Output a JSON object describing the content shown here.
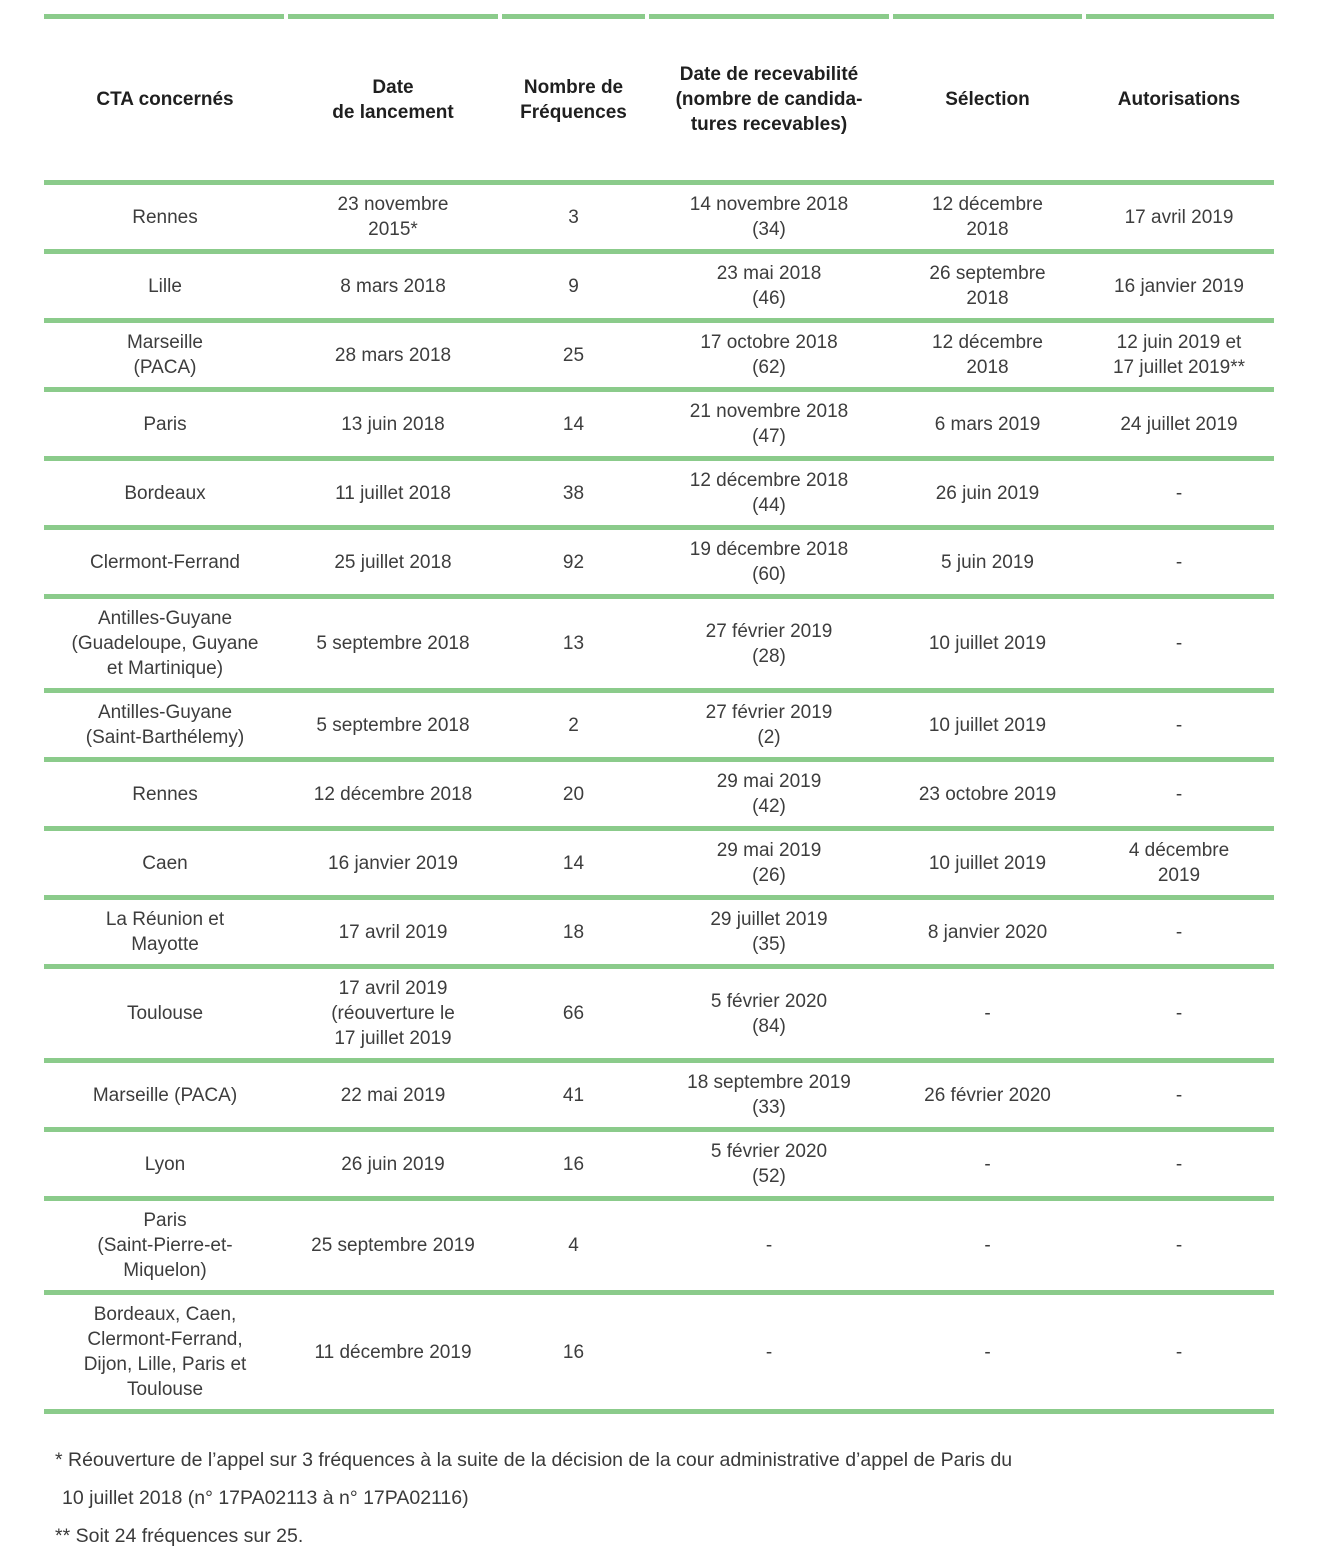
{
  "table": {
    "columns": [
      {
        "key": "cta",
        "label": "CTA concernés"
      },
      {
        "key": "lancement",
        "label": "Date\nde lancement"
      },
      {
        "key": "frequences",
        "label": "Nombre de\nFréquences"
      },
      {
        "key": "recevabilite",
        "label": "Date de recevabilité\n(nombre de candida-\ntures recevables)"
      },
      {
        "key": "selection",
        "label": "Sélection"
      },
      {
        "key": "autorisations",
        "label": "Autorisations"
      }
    ],
    "rows": [
      {
        "cta": "Rennes",
        "lancement": "23 novembre\n2015*",
        "frequences": "3",
        "recevabilite": "14 novembre 2018\n(34)",
        "selection": "12 décembre\n2018",
        "autorisations": "17 avril 2019"
      },
      {
        "cta": "Lille",
        "lancement": "8 mars 2018",
        "frequences": "9",
        "recevabilite": "23 mai 2018\n(46)",
        "selection": "26 septembre\n2018",
        "autorisations": "16 janvier 2019"
      },
      {
        "cta": "Marseille\n(PACA)",
        "lancement": "28 mars 2018",
        "frequences": "25",
        "recevabilite": "17 octobre 2018\n(62)",
        "selection": "12 décembre\n2018",
        "autorisations": "12 juin 2019 et\n17 juillet 2019**"
      },
      {
        "cta": "Paris",
        "lancement": "13 juin 2018",
        "frequences": "14",
        "recevabilite": "21 novembre 2018\n(47)",
        "selection": "6 mars 2019",
        "autorisations": "24 juillet 2019"
      },
      {
        "cta": "Bordeaux",
        "lancement": "11 juillet 2018",
        "frequences": "38",
        "recevabilite": "12 décembre 2018\n(44)",
        "selection": "26 juin 2019",
        "autorisations": "-"
      },
      {
        "cta": "Clermont-Ferrand",
        "lancement": "25 juillet 2018",
        "frequences": "92",
        "recevabilite": "19 décembre 2018\n(60)",
        "selection": "5 juin 2019",
        "autorisations": "-"
      },
      {
        "cta": "Antilles-Guyane\n(Guadeloupe, Guyane\net Martinique)",
        "lancement": "5 septembre 2018",
        "frequences": "13",
        "recevabilite": "27 février 2019\n(28)",
        "selection": "10 juillet 2019",
        "autorisations": "-"
      },
      {
        "cta": "Antilles-Guyane\n(Saint-Barthélemy)",
        "lancement": "5 septembre 2018",
        "frequences": "2",
        "recevabilite": "27 février 2019\n(2)",
        "selection": "10 juillet 2019",
        "autorisations": "-"
      },
      {
        "cta": "Rennes",
        "lancement": "12 décembre 2018",
        "frequences": "20",
        "recevabilite": "29 mai 2019\n(42)",
        "selection": "23 octobre 2019",
        "autorisations": "-"
      },
      {
        "cta": "Caen",
        "lancement": "16 janvier 2019",
        "frequences": "14",
        "recevabilite": "29 mai 2019\n(26)",
        "selection": "10 juillet 2019",
        "autorisations": "4 décembre\n2019"
      },
      {
        "cta": "La Réunion et\nMayotte",
        "lancement": "17 avril 2019",
        "frequences": "18",
        "recevabilite": "29 juillet 2019\n(35)",
        "selection": "8 janvier 2020",
        "autorisations": "-"
      },
      {
        "cta": "Toulouse",
        "lancement": "17 avril 2019\n(réouverture le\n17 juillet 2019",
        "frequences": "66",
        "recevabilite": "5 février 2020\n(84)",
        "selection": "-",
        "autorisations": "-"
      },
      {
        "cta": "Marseille (PACA)",
        "lancement": "22 mai 2019",
        "frequences": "41",
        "recevabilite": "18 septembre 2019\n(33)",
        "selection": "26 février 2020",
        "autorisations": "-"
      },
      {
        "cta": "Lyon",
        "lancement": "26 juin 2019",
        "frequences": "16",
        "recevabilite": "5 février 2020\n(52)",
        "selection": "-",
        "autorisations": "-"
      },
      {
        "cta": "Paris\n(Saint-Pierre-et-\nMiquelon)",
        "lancement": "25 septembre 2019",
        "frequences": "4",
        "recevabilite": "-",
        "selection": "-",
        "autorisations": "-"
      },
      {
        "cta": "Bordeaux, Caen,\nClermont-Ferrand,\nDijon, Lille, Paris et\nToulouse",
        "lancement": "11 décembre 2019",
        "frequences": "16",
        "recevabilite": "-",
        "selection": "-",
        "autorisations": "-"
      }
    ]
  },
  "footnotes": {
    "line1": "* Réouverture de l’appel sur 3 fréquences à la suite de la décision de la cour administrative d’appel de Paris du",
    "line2": "10 juillet 2018 (n° 17PA02113 à n° 17PA02116)",
    "line3": "** Soit 24 fréquences sur 25."
  },
  "colors": {
    "rule_green": "#8bcb8b",
    "header_text": "#1f1f1f",
    "body_text": "#3d3d3d"
  }
}
